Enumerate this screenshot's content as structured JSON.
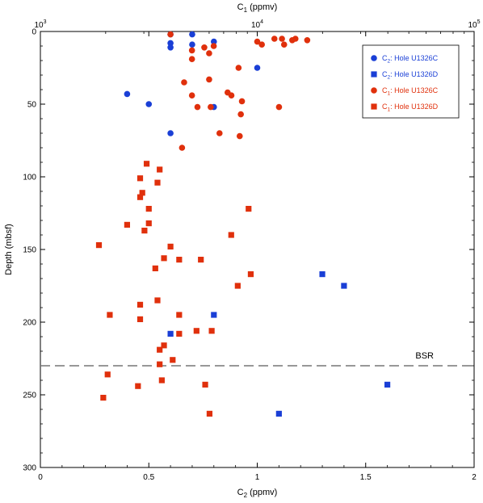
{
  "chart_data": {
    "type": "scatter",
    "x_bottom": {
      "label": "C2 (ppmv)",
      "label_main": "C",
      "label_sub": "2",
      "label_unit": " (ppmv)",
      "range": [
        0,
        2
      ],
      "ticks": [
        "0",
        "0.5",
        "1",
        "1.5",
        "2"
      ],
      "tick_values": [
        0,
        0.5,
        1,
        1.5,
        2
      ]
    },
    "x_top": {
      "label": "C1 (ppmv)",
      "label_main": "C",
      "label_sub": "1",
      "label_unit": " (ppmv)",
      "scale": "log",
      "range": [
        1000,
        100000
      ],
      "ticks": [
        "10",
        "10",
        "10"
      ],
      "tick_exponents": [
        "3",
        "4",
        "5"
      ],
      "tick_values": [
        1000,
        10000,
        100000
      ]
    },
    "y": {
      "label": "Depth (mbsf)",
      "range": [
        0,
        300
      ],
      "inverted": true,
      "ticks": [
        "0",
        "50",
        "100",
        "150",
        "200",
        "250",
        "300"
      ],
      "tick_values": [
        0,
        50,
        100,
        150,
        200,
        250,
        300
      ]
    },
    "reference_line": {
      "depth": 230,
      "label": "BSR",
      "color": "#777777"
    },
    "legend_position": "top-right",
    "series": [
      {
        "name": "C2: Hole U1326C",
        "name_main": "C",
        "name_sub": "2",
        "name_rest": ": Hole U1326C",
        "axis": "bottom",
        "marker": "circle",
        "color": "#1a3fd6",
        "points": [
          [
            0.6,
            2
          ],
          [
            0.7,
            2
          ],
          [
            0.6,
            8
          ],
          [
            0.7,
            9
          ],
          [
            0.8,
            7
          ],
          [
            0.6,
            11
          ],
          [
            1.0,
            25
          ],
          [
            0.4,
            43
          ],
          [
            0.5,
            50
          ],
          [
            0.8,
            52
          ],
          [
            0.6,
            70
          ]
        ]
      },
      {
        "name": "C2: Hole U1326D",
        "name_main": "C",
        "name_sub": "2",
        "name_rest": ": Hole U1326D",
        "axis": "bottom",
        "marker": "square",
        "color": "#1a3fd6",
        "points": [
          [
            1.3,
            167
          ],
          [
            1.4,
            175
          ],
          [
            0.8,
            195
          ],
          [
            0.6,
            208
          ],
          [
            1.6,
            243
          ],
          [
            1.1,
            263
          ]
        ]
      },
      {
        "name": "C1: Hole U1326C",
        "name_main": "C",
        "name_sub": "1",
        "name_rest": ": Hole U1326C",
        "axis": "top",
        "marker": "circle",
        "color": "#e0300c",
        "points": [
          [
            3980,
            2
          ],
          [
            10000,
            7
          ],
          [
            10500,
            9
          ],
          [
            12000,
            5
          ],
          [
            13000,
            5
          ],
          [
            14500,
            6
          ],
          [
            15000,
            5
          ],
          [
            17000,
            6
          ],
          [
            13300,
            9
          ],
          [
            5700,
            11
          ],
          [
            6300,
            10
          ],
          [
            5000,
            13
          ],
          [
            6000,
            15
          ],
          [
            5000,
            19
          ],
          [
            8200,
            25
          ],
          [
            4600,
            35
          ],
          [
            6000,
            33
          ],
          [
            7300,
            42
          ],
          [
            7600,
            44
          ],
          [
            8500,
            48
          ],
          [
            5300,
            52
          ],
          [
            5000,
            44
          ],
          [
            6100,
            52
          ],
          [
            12600,
            52
          ],
          [
            8400,
            57
          ],
          [
            6700,
            70
          ],
          [
            8300,
            72
          ],
          [
            4500,
            80
          ]
        ]
      },
      {
        "name": "C1: Hole U1326D",
        "name_main": "C",
        "name_sub": "1",
        "name_rest": ": Hole U1326D",
        "axis": "bottom",
        "marker": "square",
        "color": "#e0300c",
        "points": [
          [
            0.49,
            91
          ],
          [
            0.55,
            95
          ],
          [
            0.46,
            101
          ],
          [
            0.54,
            104
          ],
          [
            0.46,
            114
          ],
          [
            0.47,
            111
          ],
          [
            0.5,
            122
          ],
          [
            0.5,
            132
          ],
          [
            0.4,
            133
          ],
          [
            0.48,
            137
          ],
          [
            0.88,
            140
          ],
          [
            0.96,
            122
          ],
          [
            0.27,
            147
          ],
          [
            0.6,
            148
          ],
          [
            0.57,
            156
          ],
          [
            0.64,
            157
          ],
          [
            0.74,
            157
          ],
          [
            0.53,
            163
          ],
          [
            0.97,
            167
          ],
          [
            0.91,
            175
          ],
          [
            0.46,
            188
          ],
          [
            0.54,
            185
          ],
          [
            0.32,
            195
          ],
          [
            0.64,
            195
          ],
          [
            0.46,
            198
          ],
          [
            0.72,
            206
          ],
          [
            0.79,
            206
          ],
          [
            0.64,
            208
          ],
          [
            0.57,
            216
          ],
          [
            0.55,
            219
          ],
          [
            0.61,
            226
          ],
          [
            0.55,
            229
          ],
          [
            0.31,
            236
          ],
          [
            0.56,
            240
          ],
          [
            0.76,
            243
          ],
          [
            0.45,
            244
          ],
          [
            0.29,
            252
          ],
          [
            0.78,
            263
          ]
        ]
      }
    ]
  }
}
